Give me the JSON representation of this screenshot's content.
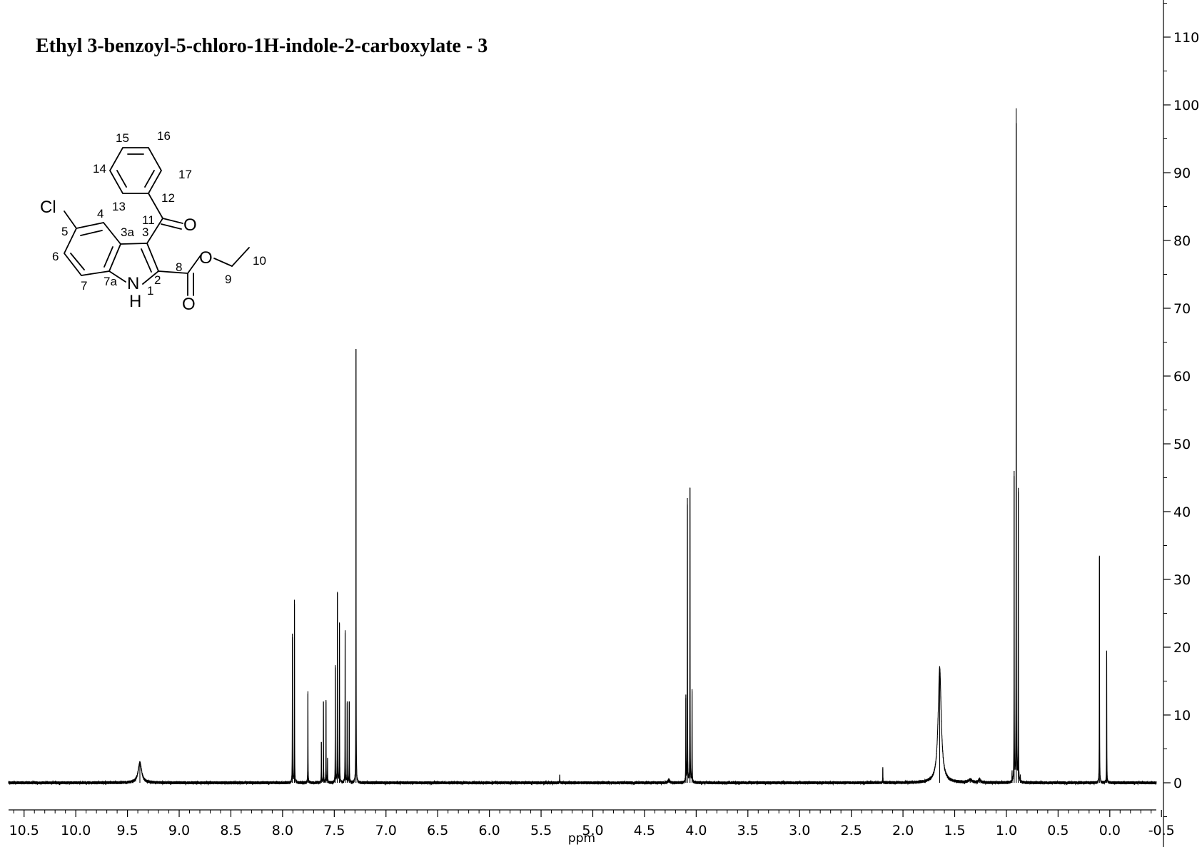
{
  "chart_data": {
    "type": "line",
    "title": "Ethyl 3-benzoyl-5-chloro-1H-indole-2-carboxylate - 3",
    "xlabel": "ppm",
    "ylabel": "",
    "xlim": [
      10.65,
      -0.45
    ],
    "x_reversed": true,
    "ylim": [
      -13,
      123
    ],
    "x_ticks": [
      "10.5",
      "10.0",
      "9.5",
      "9.0",
      "8.5",
      "8.0",
      "7.5",
      "7.0",
      "6.5",
      "6.0",
      "5.5",
      "5.0",
      "4.5",
      "4.0",
      "3.5",
      "3.0",
      "2.5",
      "2.0",
      "1.5",
      "1.0",
      "0.5",
      "0.0",
      "-0.5"
    ],
    "y_ticks": [
      "0",
      "10",
      "20",
      "30",
      "40",
      "50",
      "60",
      "70",
      "80",
      "90",
      "100",
      "110"
    ],
    "y_axis_position": "right",
    "grid": false,
    "series": [
      {
        "peaks": [
          {
            "x": 9.38,
            "height": 3.0,
            "width": 0.02
          },
          {
            "x": 7.905,
            "height": 22.0,
            "width": 0.0012
          },
          {
            "x": 7.885,
            "height": 27.0,
            "width": 0.0012
          },
          {
            "x": 7.755,
            "height": 13.5,
            "width": 0.0012
          },
          {
            "x": 7.625,
            "height": 6.0,
            "width": 0.0012
          },
          {
            "x": 7.605,
            "height": 12.0,
            "width": 0.0012
          },
          {
            "x": 7.58,
            "height": 12.0,
            "width": 0.0012
          },
          {
            "x": 7.565,
            "height": 3.5,
            "width": 0.0012
          },
          {
            "x": 7.49,
            "height": 17.0,
            "width": 0.0012
          },
          {
            "x": 7.47,
            "height": 28.0,
            "width": 0.0012
          },
          {
            "x": 7.45,
            "height": 23.5,
            "width": 0.0012
          },
          {
            "x": 7.395,
            "height": 22.5,
            "width": 0.0012
          },
          {
            "x": 7.375,
            "height": 12.0,
            "width": 0.0012
          },
          {
            "x": 7.355,
            "height": 12.0,
            "width": 0.0012
          },
          {
            "x": 7.29,
            "height": 64.0,
            "width": 0.0012
          },
          {
            "x": 5.32,
            "height": 1.2,
            "width": 0.0012
          },
          {
            "x": 4.265,
            "height": 0.5,
            "width": 0.008
          },
          {
            "x": 4.1,
            "height": 12.5,
            "width": 0.0012
          },
          {
            "x": 4.085,
            "height": 42.0,
            "width": 0.0012
          },
          {
            "x": 4.06,
            "height": 43.5,
            "width": 0.0012
          },
          {
            "x": 4.04,
            "height": 13.5,
            "width": 0.0012
          },
          {
            "x": 2.195,
            "height": 2.3,
            "width": 0.0012
          },
          {
            "x": 1.645,
            "height": 17.0,
            "width": 0.018
          },
          {
            "x": 1.35,
            "height": 0.4,
            "width": 0.02
          },
          {
            "x": 1.26,
            "height": 0.5,
            "width": 0.01
          },
          {
            "x": 0.945,
            "height": 1.5,
            "width": 0.0012
          },
          {
            "x": 0.925,
            "height": 46.0,
            "width": 0.0012
          },
          {
            "x": 0.905,
            "height": 99.5,
            "width": 0.0012
          },
          {
            "x": 0.885,
            "height": 43.5,
            "width": 0.0012
          },
          {
            "x": 0.865,
            "height": 0.8,
            "width": 0.0012
          },
          {
            "x": 0.1,
            "height": 33.5,
            "width": 0.0012
          },
          {
            "x": 0.03,
            "height": 19.5,
            "width": 0.0012
          }
        ]
      }
    ]
  },
  "structure": {
    "atoms": {
      "cl": "Cl",
      "o_ketone": "O",
      "o_ester": "O",
      "o_carbonyl": "O",
      "n": "N",
      "h": "H"
    },
    "locants": {
      "n15": "15",
      "n16": "16",
      "n14": "14",
      "n17": "17",
      "n12": "12",
      "n13": "13",
      "n4": "4",
      "n11": "11",
      "n5": "5",
      "n3a": "3a",
      "n3": "3",
      "n6": "6",
      "n8": "8",
      "n10": "10",
      "n9": "9",
      "n7": "7",
      "n7a": "7a",
      "n2": "2",
      "n1": "1"
    }
  }
}
